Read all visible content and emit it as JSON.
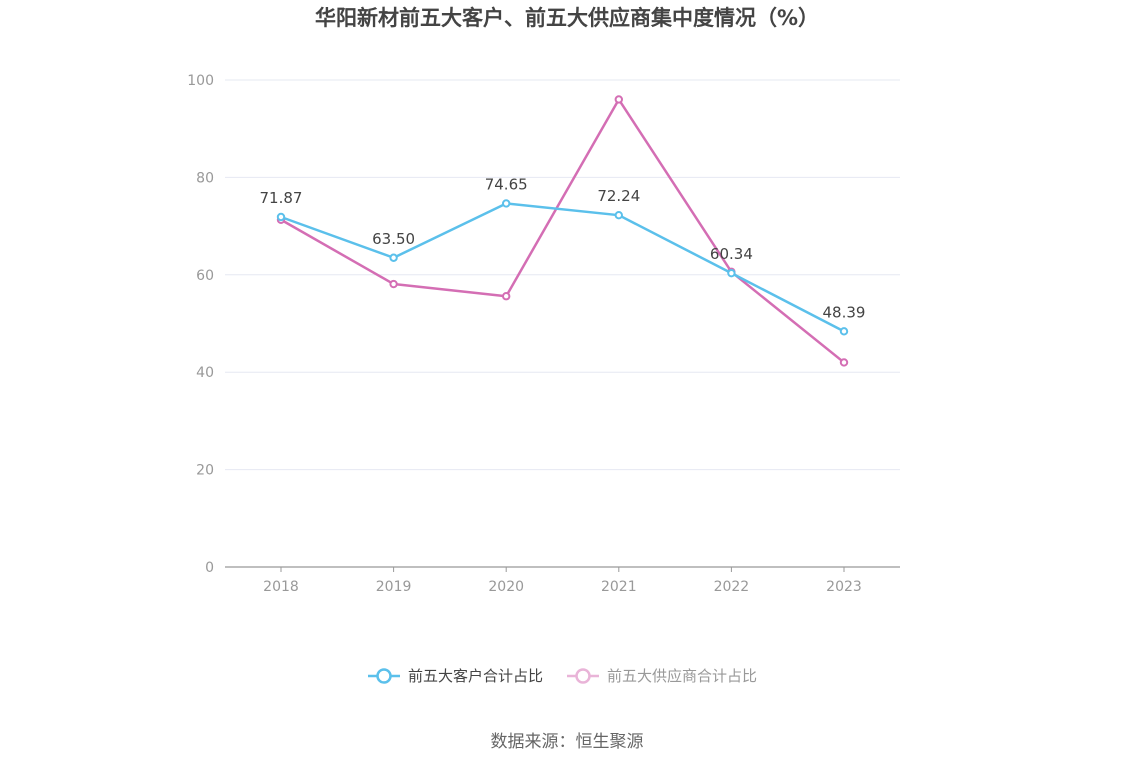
{
  "chart_data": {
    "type": "line",
    "title": "华阳新材前五大客户、前五大供应商集中度情况（%）",
    "categories": [
      "2018",
      "2019",
      "2020",
      "2021",
      "2022",
      "2023"
    ],
    "ylim": [
      0,
      100
    ],
    "yticks": [
      0,
      20,
      40,
      60,
      80,
      100
    ],
    "grid": true,
    "legend_position": "bottom",
    "series": [
      {
        "name": "前五大客户合计占比",
        "values": [
          71.87,
          63.5,
          74.65,
          72.24,
          60.34,
          48.39
        ],
        "labels": [
          "71.87",
          "63.50",
          "74.65",
          "72.24",
          "60.34",
          "48.39"
        ],
        "color": "#5bc0eb"
      },
      {
        "name": "前五大供应商合计占比",
        "values": [
          71.3,
          58.1,
          55.6,
          96.0,
          60.6,
          42.0
        ],
        "color": "#d46eb4"
      }
    ],
    "source": "数据来源：恒生聚源"
  }
}
